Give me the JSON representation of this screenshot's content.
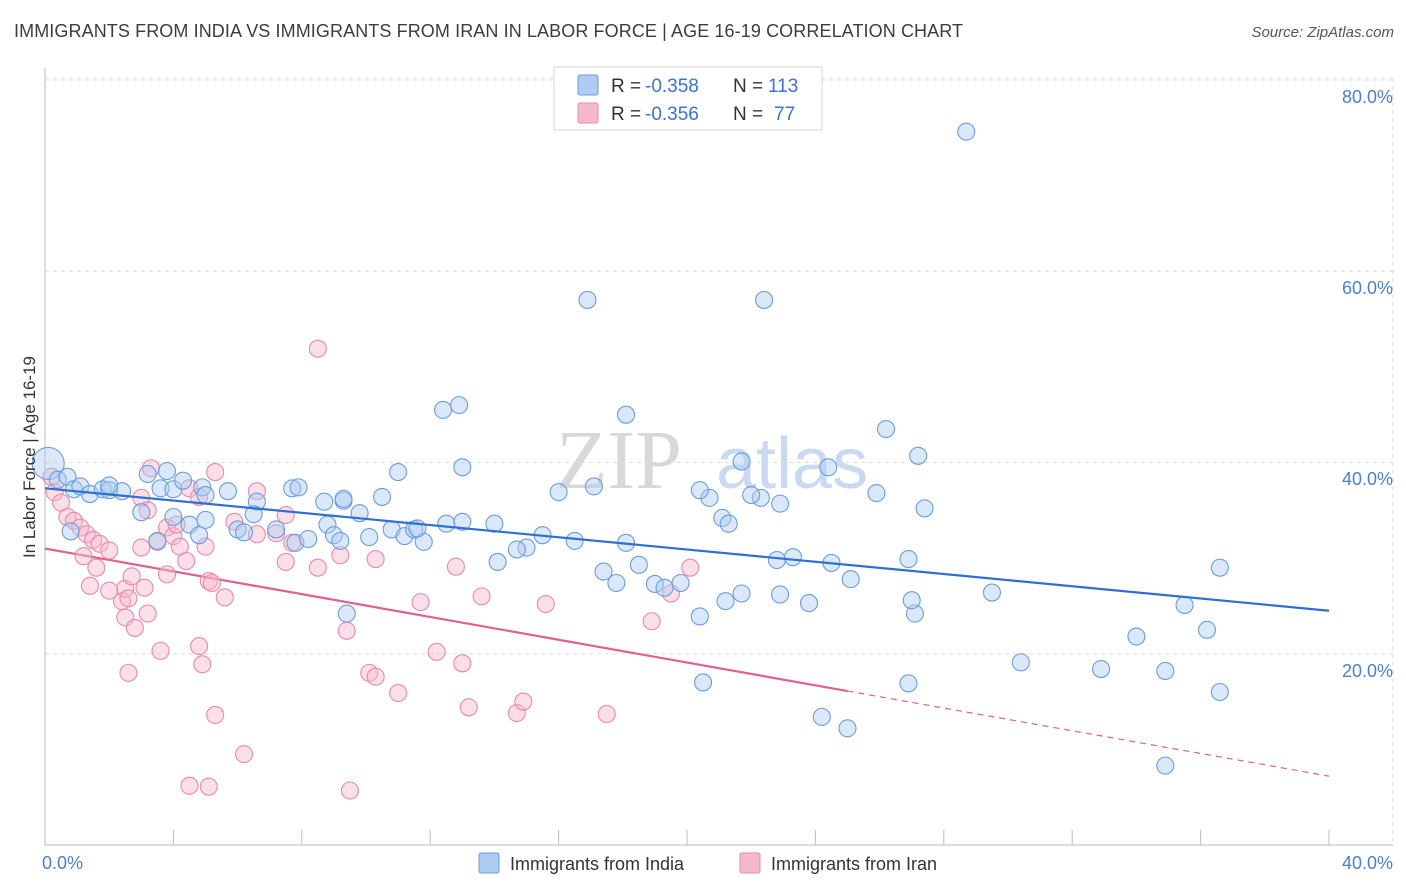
{
  "title": "IMMIGRANTS FROM INDIA VS IMMIGRANTS FROM IRAN IN LABOR FORCE | AGE 16-19 CORRELATION CHART",
  "source": "Source: ZipAtlas.com",
  "watermark": {
    "zip": "ZIP",
    "atlas": "atlas"
  },
  "legend": {
    "r_label": "R =",
    "n_label": "N =",
    "rows": [
      {
        "r": "-0.358",
        "n": "113"
      },
      {
        "r": "-0.356",
        "n": "77"
      }
    ]
  },
  "bottom_legend": [
    "Immigrants from India",
    "Immigrants from Iran"
  ],
  "colors": {
    "india_fill": "#aecbf2",
    "india_stroke": "#6b9de0",
    "india_line": "#2e6fd6",
    "iran_fill": "#f6b8cc",
    "iran_stroke": "#e98aa8",
    "iran_line": "#e0608e"
  },
  "chart_data": {
    "type": "scatter",
    "title": "IMMIGRANTS FROM INDIA VS IMMIGRANTS FROM IRAN IN LABOR FORCE | AGE 16-19 CORRELATION CHART",
    "xlabel": "",
    "ylabel": "In Labor Force | Age 16-19",
    "xlim": [
      0,
      40
    ],
    "ylim": [
      0,
      80
    ],
    "x_tick_labels": [
      "0.0%",
      "40.0%"
    ],
    "y_tick_labels": [
      "20.0%",
      "40.0%",
      "60.0%",
      "80.0%"
    ],
    "y_ticks": [
      20,
      40,
      60,
      80
    ],
    "grid": true,
    "series": [
      {
        "name": "Immigrants from India",
        "r": -0.358,
        "n": 113,
        "trend": {
          "x": [
            0,
            40
          ],
          "y": [
            37.3,
            24.5
          ]
        },
        "points": [
          [
            0.1,
            39.9
          ],
          [
            0.4,
            38.2
          ],
          [
            0.7,
            38.5
          ],
          [
            0.9,
            37.2
          ],
          [
            1.1,
            37.5
          ],
          [
            1.4,
            36.7
          ],
          [
            1.8,
            37.2
          ],
          [
            2.0,
            37.1
          ],
          [
            2.4,
            37.0
          ],
          [
            3.2,
            38.8
          ],
          [
            3.6,
            37.3
          ],
          [
            3.8,
            39.1
          ],
          [
            4.0,
            37.2
          ],
          [
            4.3,
            38.1
          ],
          [
            4.9,
            37.4
          ],
          [
            5.0,
            36.6
          ],
          [
            2.0,
            37.6
          ],
          [
            5.7,
            37.0
          ],
          [
            6.6,
            35.9
          ],
          [
            7.7,
            37.3
          ],
          [
            9.3,
            36.0
          ],
          [
            9.3,
            36.2
          ],
          [
            10.5,
            36.4
          ],
          [
            3.0,
            34.8
          ],
          [
            4.0,
            34.3
          ],
          [
            5.0,
            34.0
          ],
          [
            6.5,
            34.6
          ],
          [
            6.0,
            33.0
          ],
          [
            4.5,
            33.5
          ],
          [
            4.8,
            32.4
          ],
          [
            6.2,
            32.7
          ],
          [
            7.2,
            33.0
          ],
          [
            0.8,
            32.8
          ],
          [
            3.5,
            31.8
          ],
          [
            7.8,
            31.6
          ],
          [
            8.2,
            32.0
          ],
          [
            8.8,
            33.5
          ],
          [
            9.0,
            32.4
          ],
          [
            9.2,
            31.8
          ],
          [
            9.8,
            34.7
          ],
          [
            10.1,
            32.2
          ],
          [
            10.8,
            33.0
          ],
          [
            11.2,
            32.3
          ],
          [
            11.5,
            33.0
          ],
          [
            11.8,
            31.7
          ],
          [
            11.6,
            33.1
          ],
          [
            12.5,
            33.6
          ],
          [
            13.0,
            33.8
          ],
          [
            14.0,
            33.6
          ],
          [
            15.0,
            31.1
          ],
          [
            14.1,
            29.6
          ],
          [
            14.7,
            30.9
          ],
          [
            15.5,
            32.4
          ],
          [
            16.5,
            31.8
          ],
          [
            17.4,
            28.6
          ],
          [
            17.8,
            27.4
          ],
          [
            18.1,
            31.6
          ],
          [
            18.5,
            29.3
          ],
          [
            19.0,
            27.3
          ],
          [
            19.3,
            26.9
          ],
          [
            19.8,
            27.4
          ],
          [
            20.4,
            23.9
          ],
          [
            20.7,
            36.3
          ],
          [
            21.1,
            34.2
          ],
          [
            21.3,
            33.6
          ],
          [
            21.7,
            26.3
          ],
          [
            22.3,
            36.3
          ],
          [
            22.8,
            29.8
          ],
          [
            22.9,
            26.2
          ],
          [
            23.3,
            30.1
          ],
          [
            23.8,
            25.3
          ],
          [
            24.5,
            29.5
          ],
          [
            25.1,
            27.8
          ],
          [
            25.9,
            36.8
          ],
          [
            26.9,
            29.9
          ],
          [
            27.1,
            24.2
          ],
          [
            20.4,
            37.1
          ],
          [
            16.0,
            36.9
          ],
          [
            11.0,
            39.0
          ],
          [
            13.0,
            39.5
          ],
          [
            12.4,
            45.5
          ],
          [
            12.9,
            46.0
          ],
          [
            18.1,
            45.0
          ],
          [
            16.9,
            57.0
          ],
          [
            22.4,
            57.0
          ],
          [
            28.7,
            74.6
          ],
          [
            22.0,
            36.6
          ],
          [
            27.4,
            35.2
          ],
          [
            17.1,
            37.5
          ],
          [
            21.7,
            40.1
          ],
          [
            26.2,
            43.5
          ],
          [
            27.2,
            40.7
          ],
          [
            24.4,
            39.5
          ],
          [
            22.9,
            35.7
          ],
          [
            30.4,
            19.1
          ],
          [
            32.9,
            18.4
          ],
          [
            34.0,
            21.8
          ],
          [
            34.9,
            18.2
          ],
          [
            35.5,
            25.1
          ],
          [
            36.2,
            22.5
          ],
          [
            36.6,
            16.0
          ],
          [
            36.6,
            29.0
          ],
          [
            34.9,
            8.3
          ],
          [
            24.2,
            13.4
          ],
          [
            25.0,
            12.2
          ],
          [
            20.5,
            17.0
          ],
          [
            21.2,
            25.5
          ],
          [
            27.0,
            25.6
          ],
          [
            26.9,
            16.9
          ],
          [
            29.5,
            26.4
          ],
          [
            8.7,
            35.9
          ],
          [
            7.9,
            37.4
          ],
          [
            9.4,
            24.2
          ]
        ]
      },
      {
        "name": "Immigrants from Iran",
        "r": -0.356,
        "n": 77,
        "trend_solid": {
          "x": [
            0,
            25
          ],
          "y": [
            31.0,
            16.1
          ]
        },
        "trend_dashed": {
          "x": [
            25,
            40
          ],
          "y": [
            16.1,
            7.2
          ]
        },
        "points": [
          [
            0.2,
            38.5
          ],
          [
            0.3,
            36.9
          ],
          [
            0.5,
            35.8
          ],
          [
            0.7,
            34.3
          ],
          [
            0.9,
            33.9
          ],
          [
            1.1,
            33.2
          ],
          [
            1.3,
            32.5
          ],
          [
            1.5,
            31.9
          ],
          [
            1.7,
            31.5
          ],
          [
            2.0,
            30.8
          ],
          [
            1.6,
            29.0
          ],
          [
            2.0,
            26.6
          ],
          [
            2.4,
            25.5
          ],
          [
            2.5,
            26.8
          ],
          [
            2.6,
            25.8
          ],
          [
            2.7,
            28.1
          ],
          [
            3.0,
            31.1
          ],
          [
            3.0,
            36.3
          ],
          [
            3.2,
            35.0
          ],
          [
            3.5,
            31.7
          ],
          [
            3.8,
            33.2
          ],
          [
            4.0,
            32.3
          ],
          [
            4.2,
            31.2
          ],
          [
            4.1,
            33.5
          ],
          [
            4.5,
            37.3
          ],
          [
            4.8,
            36.4
          ],
          [
            5.0,
            31.2
          ],
          [
            5.1,
            27.6
          ],
          [
            5.2,
            27.4
          ],
          [
            5.6,
            25.9
          ],
          [
            5.9,
            33.8
          ],
          [
            6.6,
            32.5
          ],
          [
            6.6,
            37.0
          ],
          [
            3.3,
            39.4
          ],
          [
            5.3,
            39.0
          ],
          [
            7.2,
            32.6
          ],
          [
            7.5,
            34.5
          ],
          [
            7.5,
            29.6
          ],
          [
            7.7,
            31.6
          ],
          [
            8.5,
            51.9
          ],
          [
            8.5,
            29.0
          ],
          [
            9.2,
            30.3
          ],
          [
            9.4,
            22.4
          ],
          [
            10.3,
            29.9
          ],
          [
            10.1,
            18.0
          ],
          [
            10.3,
            17.6
          ],
          [
            11.0,
            15.9
          ],
          [
            11.7,
            25.4
          ],
          [
            12.2,
            20.2
          ],
          [
            12.8,
            29.1
          ],
          [
            13.0,
            19.0
          ],
          [
            13.2,
            14.4
          ],
          [
            13.6,
            26.0
          ],
          [
            14.7,
            13.8
          ],
          [
            14.9,
            15.0
          ],
          [
            15.6,
            25.2
          ],
          [
            18.9,
            23.4
          ],
          [
            19.5,
            26.3
          ],
          [
            20.1,
            29.0
          ],
          [
            17.5,
            13.7
          ],
          [
            4.5,
            6.2
          ],
          [
            5.1,
            6.1
          ],
          [
            6.2,
            9.5
          ],
          [
            9.5,
            5.7
          ],
          [
            4.8,
            20.8
          ],
          [
            4.9,
            18.9
          ],
          [
            3.6,
            20.3
          ],
          [
            2.6,
            18.0
          ],
          [
            5.3,
            13.6
          ],
          [
            2.5,
            23.8
          ],
          [
            2.8,
            22.7
          ],
          [
            3.2,
            24.2
          ],
          [
            3.8,
            28.3
          ],
          [
            1.2,
            30.2
          ],
          [
            1.4,
            27.1
          ],
          [
            4.4,
            29.7
          ],
          [
            3.1,
            26.9
          ]
        ]
      }
    ]
  }
}
